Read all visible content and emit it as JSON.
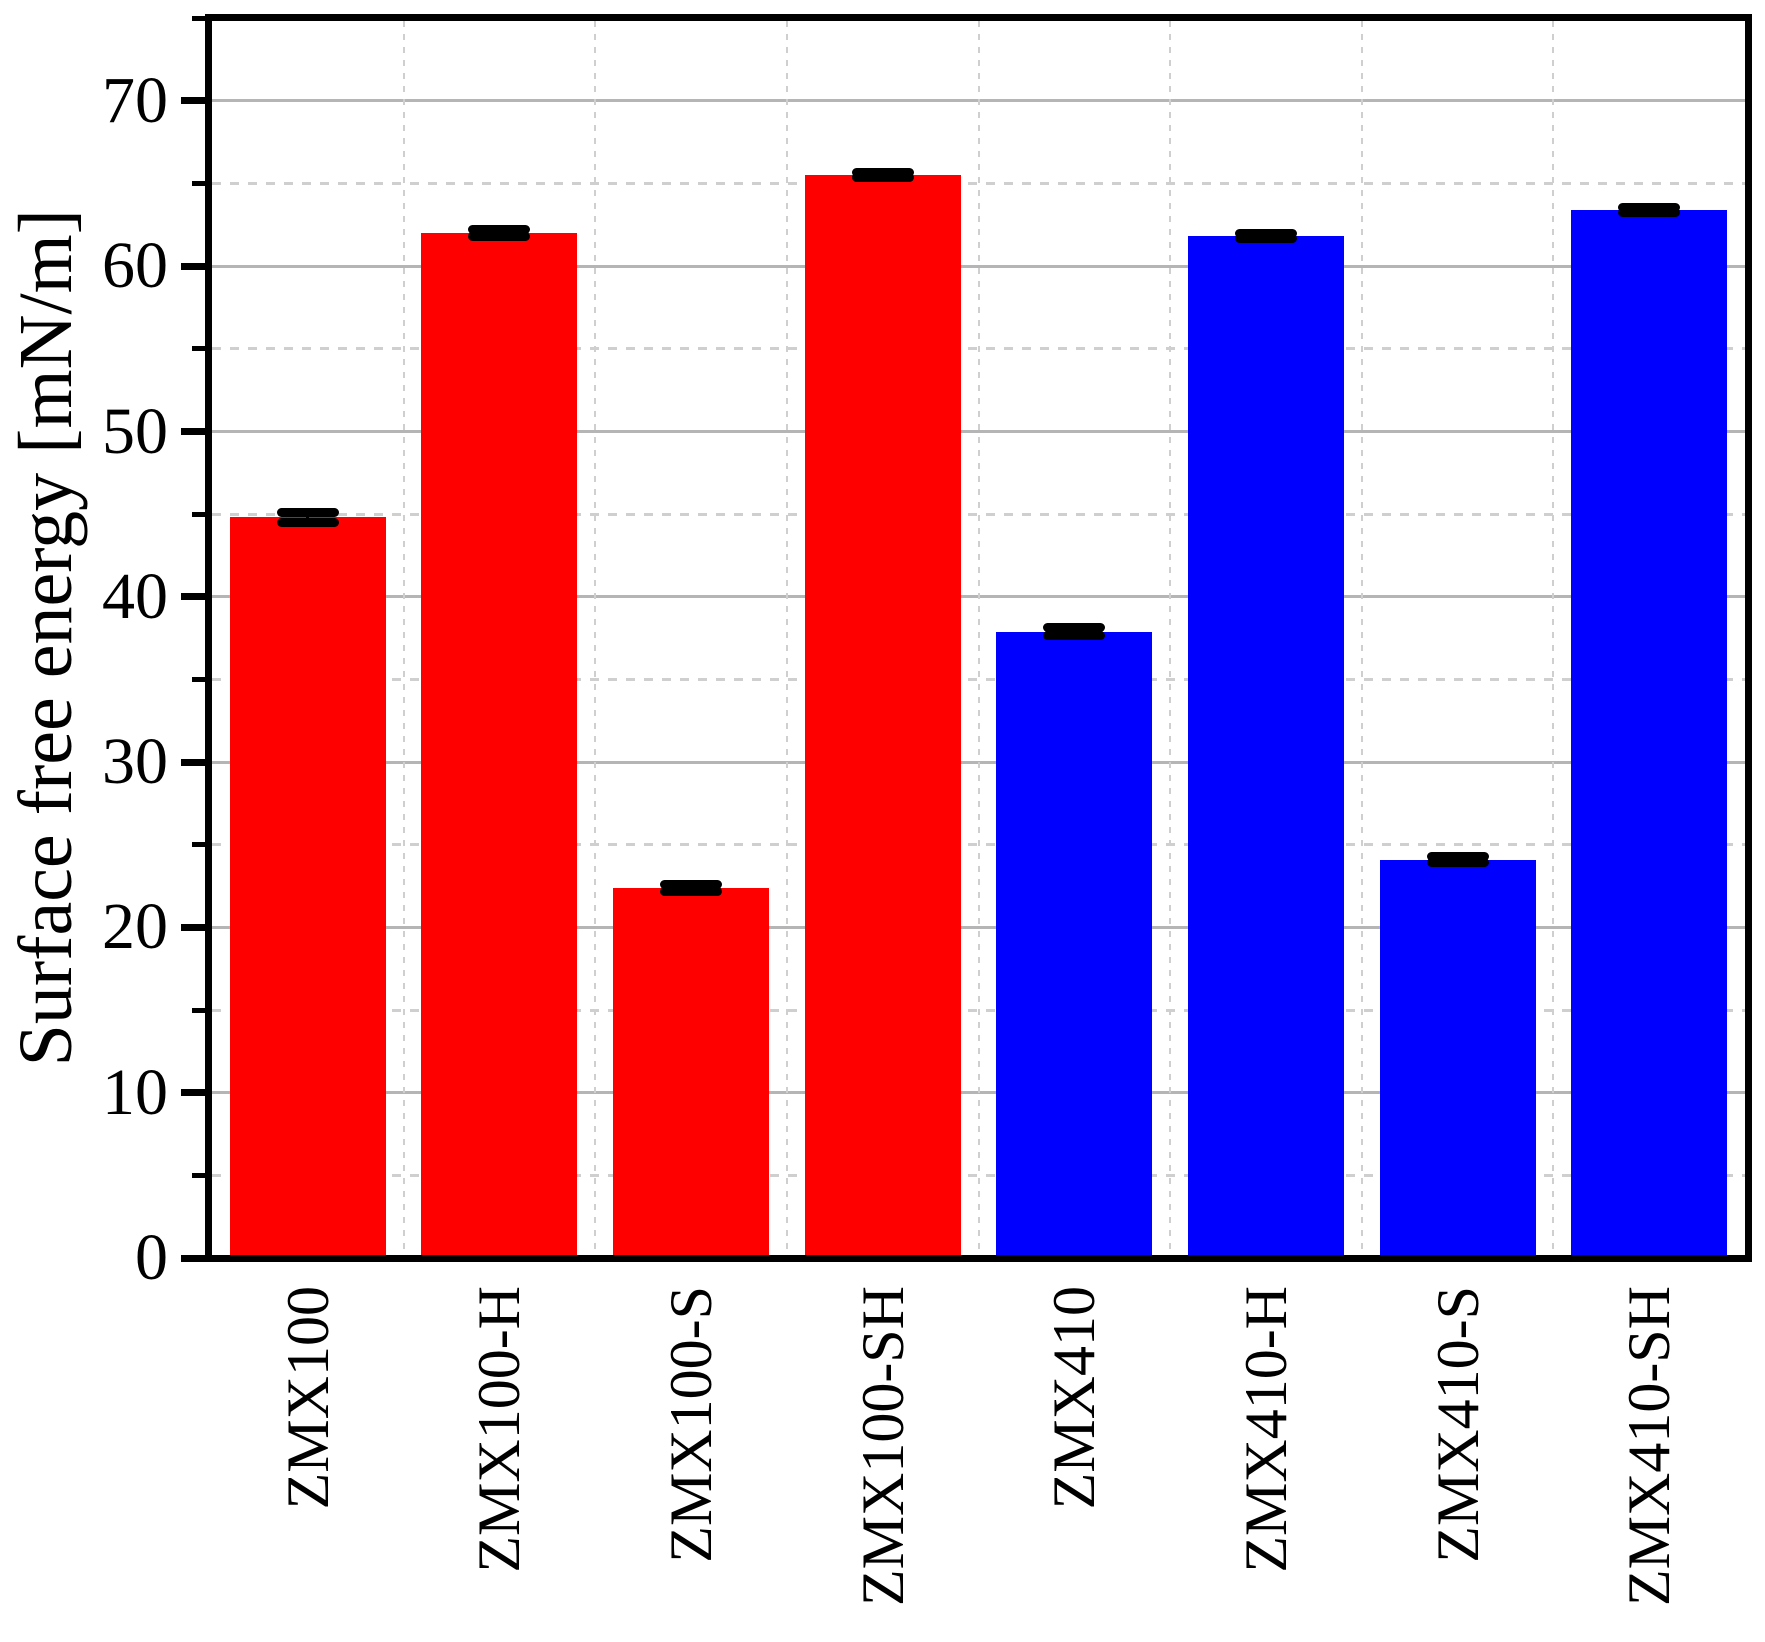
{
  "chart_data": {
    "type": "bar",
    "title": "",
    "xlabel": "",
    "ylabel": "Surface free energy [mN/m]",
    "ylim": [
      0,
      75
    ],
    "y_major_ticks": [
      0,
      10,
      20,
      30,
      40,
      50,
      60,
      70
    ],
    "y_minor_ticks": [
      5,
      15,
      25,
      35,
      45,
      55,
      65,
      75
    ],
    "y_tick_labels": [
      "0",
      "10",
      "20",
      "30",
      "40",
      "50",
      "60",
      "70"
    ],
    "grid": {
      "major_horizontal": "solid",
      "minor_horizontal": "dashed",
      "vertical_category_boundaries": "dashed"
    },
    "legend_position": "none",
    "categories": [
      "ZMX100",
      "ZMX100-H",
      "ZMX100-S",
      "ZMX100-SH",
      "ZMX410",
      "ZMX410-H",
      "ZMX410-S",
      "ZMX410-SH"
    ],
    "values": [
      44.8,
      62.0,
      22.4,
      65.5,
      37.9,
      61.8,
      24.1,
      63.4
    ],
    "errors": [
      0.3,
      0.2,
      0.2,
      0.15,
      0.25,
      0.15,
      0.2,
      0.15
    ],
    "bar_colors": [
      "#ff0000",
      "#ff0000",
      "#ff0000",
      "#ff0000",
      "#0000ff",
      "#0000ff",
      "#0000ff",
      "#0000ff"
    ]
  },
  "colors": {
    "red_group": "#ff0000",
    "blue_group": "#0000ff",
    "axis_frame": "#000000",
    "error_bar": "#000000",
    "grid_major": "#b5b5b5",
    "grid_minor": "#cfcfcf",
    "background": "#ffffff",
    "text": "#000000"
  }
}
